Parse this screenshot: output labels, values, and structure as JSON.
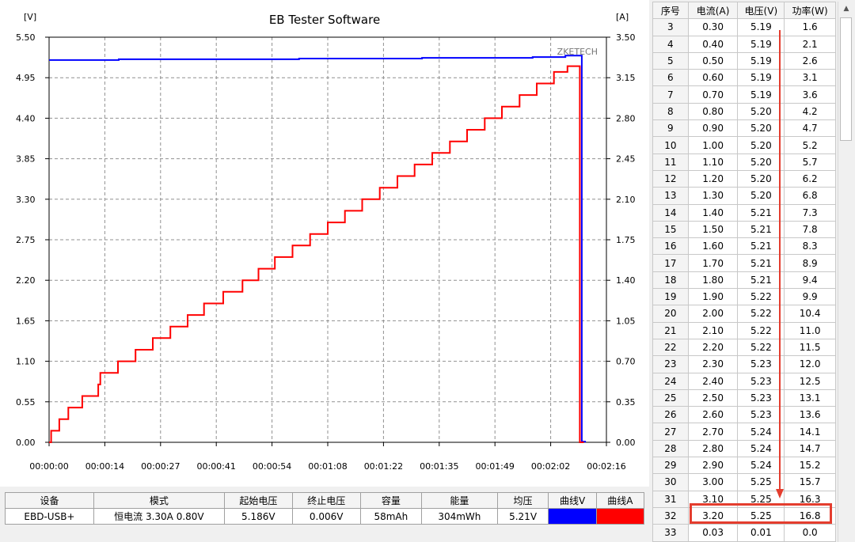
{
  "app": {
    "title": "EB Tester Software",
    "watermark": "ZKETECH"
  },
  "chart_data": {
    "type": "line",
    "title": "EB Tester Software",
    "ylabel_left": "[V]",
    "ylabel_right": "[A]",
    "y_left_ticks": [
      "5.50",
      "4.95",
      "4.40",
      "3.85",
      "3.30",
      "2.75",
      "2.20",
      "1.65",
      "1.10",
      "0.55",
      "0.00"
    ],
    "y_right_ticks": [
      "3.50",
      "3.15",
      "2.80",
      "2.45",
      "2.10",
      "1.75",
      "1.40",
      "1.05",
      "0.70",
      "0.35",
      "0.00"
    ],
    "x_ticks": [
      "00:00:00",
      "00:00:14",
      "00:00:27",
      "00:00:41",
      "00:00:54",
      "00:01:08",
      "00:01:22",
      "00:01:35",
      "00:01:49",
      "00:02:02",
      "00:02:16"
    ],
    "ylim_left": [
      0,
      5.5
    ],
    "ylim_right": [
      0,
      3.5
    ],
    "xlim_seconds": [
      0,
      136
    ],
    "grid": true,
    "series": [
      {
        "axis": "left",
        "color": "#0000ff",
        "points": [
          [
            0,
            5.19
          ],
          [
            17,
            5.19
          ],
          [
            17,
            5.2
          ],
          [
            61,
            5.2
          ],
          [
            61,
            5.21
          ],
          [
            91,
            5.21
          ],
          [
            91,
            5.22
          ],
          [
            118,
            5.22
          ],
          [
            118,
            5.23
          ],
          [
            126,
            5.23
          ],
          [
            126,
            5.25
          ],
          [
            130,
            5.25
          ],
          [
            130,
            0.01
          ],
          [
            131,
            0.01
          ]
        ]
      },
      {
        "axis": "right",
        "color": "#ff0000",
        "points": [
          [
            0,
            0.0
          ],
          [
            0.5,
            0.0
          ],
          [
            0.5,
            0.1
          ],
          [
            2.5,
            0.1
          ],
          [
            2.5,
            0.2
          ],
          [
            4.7,
            0.2
          ],
          [
            4.7,
            0.3
          ],
          [
            8.1,
            0.3
          ],
          [
            8.1,
            0.4
          ],
          [
            12.0,
            0.4
          ],
          [
            12.0,
            0.5
          ],
          [
            12.5,
            0.5
          ],
          [
            12.5,
            0.6
          ],
          [
            16.8,
            0.6
          ],
          [
            16.8,
            0.7
          ],
          [
            21.1,
            0.7
          ],
          [
            21.1,
            0.8
          ],
          [
            25.3,
            0.8
          ],
          [
            25.3,
            0.9
          ],
          [
            29.6,
            0.9
          ],
          [
            29.6,
            1.0
          ],
          [
            33.8,
            1.0
          ],
          [
            33.8,
            1.1
          ],
          [
            37.8,
            1.1
          ],
          [
            37.8,
            1.2
          ],
          [
            42.5,
            1.2
          ],
          [
            42.5,
            1.3
          ],
          [
            47.2,
            1.3
          ],
          [
            47.2,
            1.4
          ],
          [
            51.1,
            1.4
          ],
          [
            51.1,
            1.5
          ],
          [
            55.1,
            1.5
          ],
          [
            55.1,
            1.6
          ],
          [
            59.4,
            1.6
          ],
          [
            59.4,
            1.7
          ],
          [
            63.7,
            1.7
          ],
          [
            63.7,
            1.8
          ],
          [
            68.0,
            1.8
          ],
          [
            68.0,
            1.9
          ],
          [
            72.2,
            1.9
          ],
          [
            72.2,
            2.0
          ],
          [
            76.4,
            2.0
          ],
          [
            76.4,
            2.1
          ],
          [
            80.7,
            2.1
          ],
          [
            80.7,
            2.2
          ],
          [
            85.0,
            2.2
          ],
          [
            85.0,
            2.3
          ],
          [
            89.2,
            2.3
          ],
          [
            89.2,
            2.4
          ],
          [
            93.5,
            2.4
          ],
          [
            93.5,
            2.5
          ],
          [
            97.8,
            2.5
          ],
          [
            97.8,
            2.6
          ],
          [
            102.0,
            2.6
          ],
          [
            102.0,
            2.7
          ],
          [
            106.3,
            2.7
          ],
          [
            106.3,
            2.8
          ],
          [
            110.5,
            2.8
          ],
          [
            110.5,
            2.9
          ],
          [
            114.8,
            2.9
          ],
          [
            114.8,
            3.0
          ],
          [
            119.0,
            3.0
          ],
          [
            119.0,
            3.1
          ],
          [
            123.2,
            3.1
          ],
          [
            123.2,
            3.2
          ],
          [
            126.5,
            3.2
          ],
          [
            126.5,
            3.25
          ],
          [
            129.5,
            3.25
          ],
          [
            129.5,
            0.0
          ],
          [
            130.5,
            0.0
          ]
        ]
      }
    ]
  },
  "info_table": {
    "headers": [
      "设备",
      "模式",
      "起始电压",
      "终止电压",
      "容量",
      "能量",
      "均压",
      "曲线V",
      "曲线A"
    ],
    "row": {
      "device": "EBD-USB+",
      "mode": "恒电流  3.30A  0.80V",
      "start_voltage": "5.186V",
      "end_voltage": "0.006V",
      "capacity": "58mAh",
      "energy": "304mWh",
      "avg_voltage": "5.21V"
    },
    "curve_v_color": "#0000ff",
    "curve_a_color": "#ff0000"
  },
  "data_table": {
    "headers": [
      "序号",
      "电流(A)",
      "电压(V)",
      "功率(W)"
    ],
    "rows": [
      [
        "3",
        "0.30",
        "5.19",
        "1.6"
      ],
      [
        "4",
        "0.40",
        "5.19",
        "2.1"
      ],
      [
        "5",
        "0.50",
        "5.19",
        "2.6"
      ],
      [
        "6",
        "0.60",
        "5.19",
        "3.1"
      ],
      [
        "7",
        "0.70",
        "5.19",
        "3.6"
      ],
      [
        "8",
        "0.80",
        "5.20",
        "4.2"
      ],
      [
        "9",
        "0.90",
        "5.20",
        "4.7"
      ],
      [
        "10",
        "1.00",
        "5.20",
        "5.2"
      ],
      [
        "11",
        "1.10",
        "5.20",
        "5.7"
      ],
      [
        "12",
        "1.20",
        "5.20",
        "6.2"
      ],
      [
        "13",
        "1.30",
        "5.20",
        "6.8"
      ],
      [
        "14",
        "1.40",
        "5.21",
        "7.3"
      ],
      [
        "15",
        "1.50",
        "5.21",
        "7.8"
      ],
      [
        "16",
        "1.60",
        "5.21",
        "8.3"
      ],
      [
        "17",
        "1.70",
        "5.21",
        "8.9"
      ],
      [
        "18",
        "1.80",
        "5.21",
        "9.4"
      ],
      [
        "19",
        "1.90",
        "5.22",
        "9.9"
      ],
      [
        "20",
        "2.00",
        "5.22",
        "10.4"
      ],
      [
        "21",
        "2.10",
        "5.22",
        "11.0"
      ],
      [
        "22",
        "2.20",
        "5.22",
        "11.5"
      ],
      [
        "23",
        "2.30",
        "5.23",
        "12.0"
      ],
      [
        "24",
        "2.40",
        "5.23",
        "12.5"
      ],
      [
        "25",
        "2.50",
        "5.23",
        "13.1"
      ],
      [
        "26",
        "2.60",
        "5.23",
        "13.6"
      ],
      [
        "27",
        "2.70",
        "5.24",
        "14.1"
      ],
      [
        "28",
        "2.80",
        "5.24",
        "14.7"
      ],
      [
        "29",
        "2.90",
        "5.24",
        "15.2"
      ],
      [
        "30",
        "3.00",
        "5.25",
        "15.7"
      ],
      [
        "31",
        "3.10",
        "5.25",
        "16.3"
      ],
      [
        "32",
        "3.20",
        "5.25",
        "16.8"
      ],
      [
        "33",
        "0.03",
        "0.01",
        "0.0"
      ]
    ],
    "highlighted_row": "32",
    "annotation_color": "#e43d2e"
  },
  "scrollbar": {
    "up_icon": "triangle-up-icon"
  }
}
